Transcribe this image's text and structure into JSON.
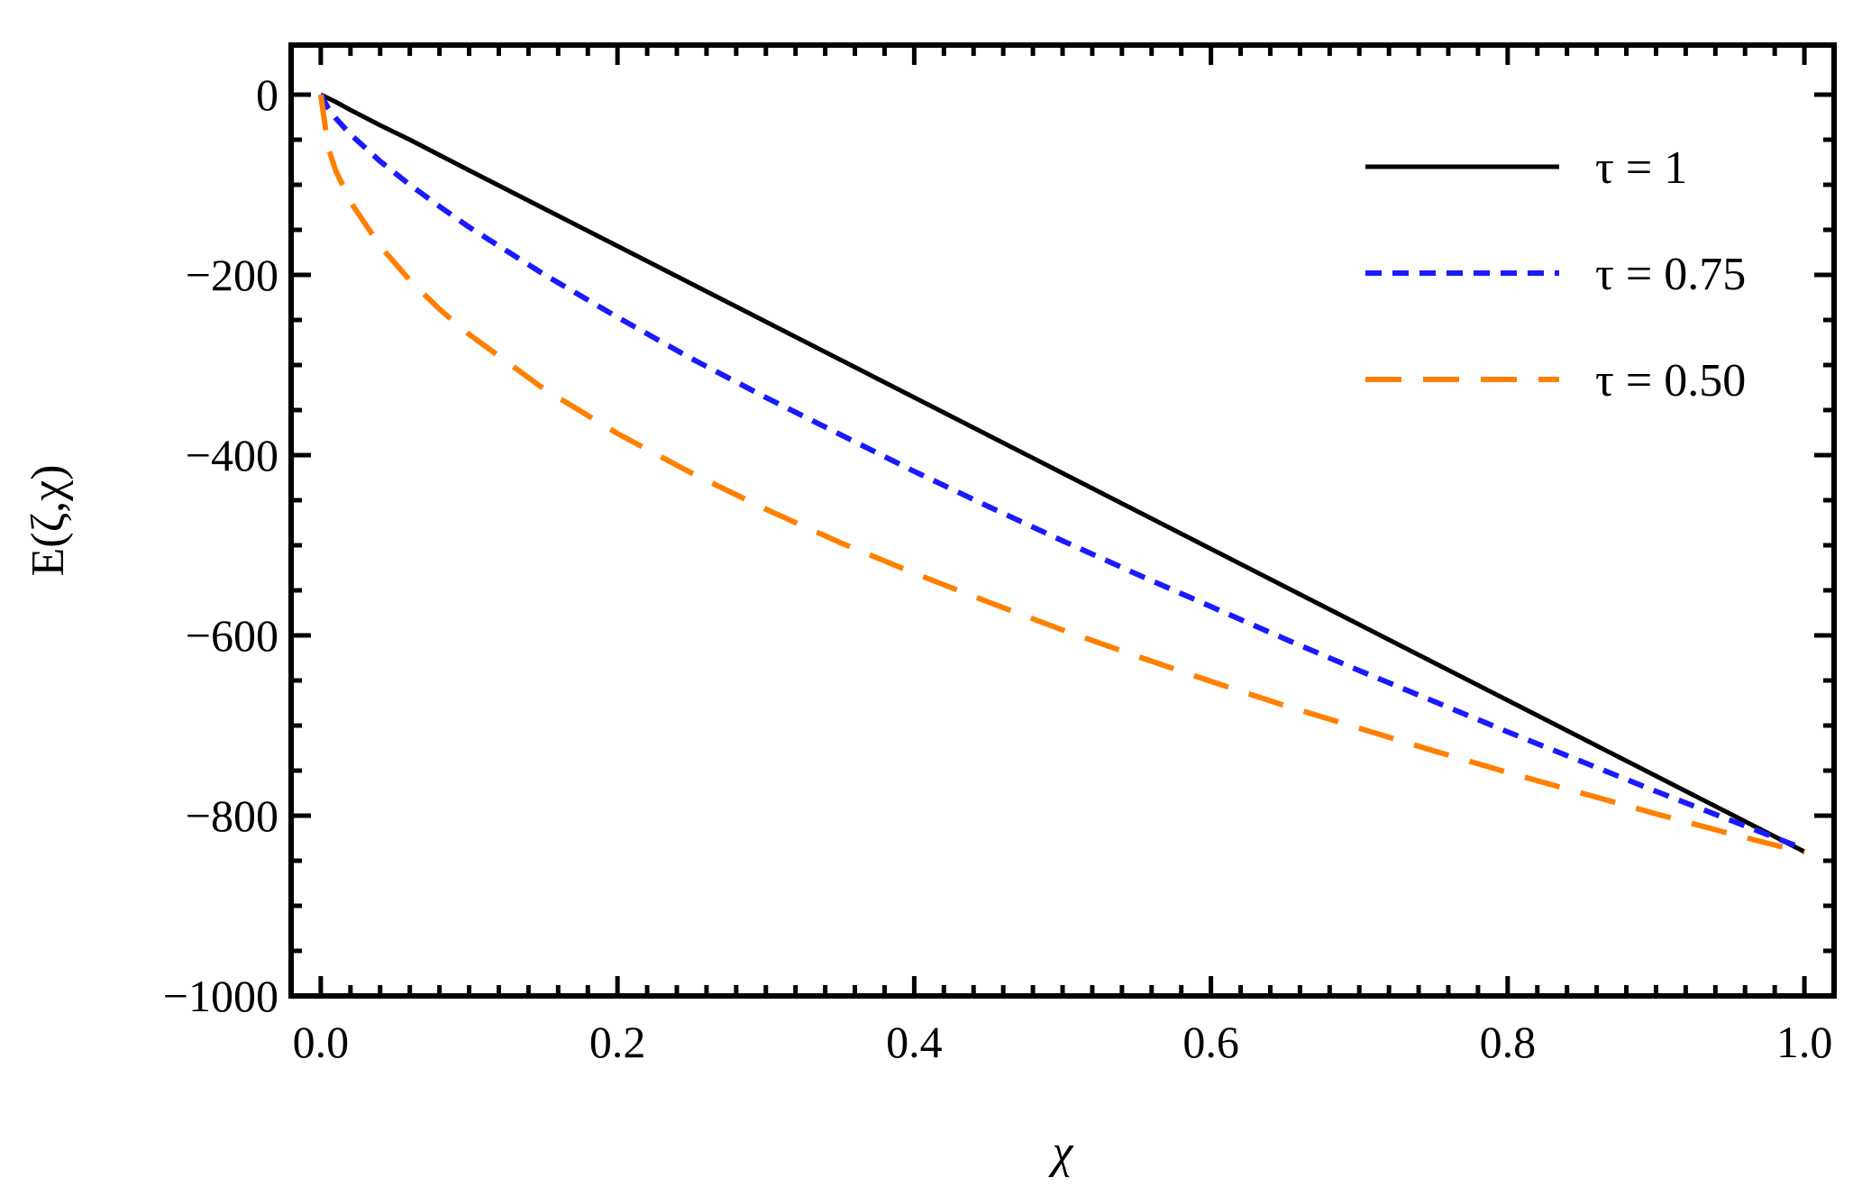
{
  "chart_data": {
    "type": "line",
    "title": "",
    "xlabel": "χ",
    "ylabel": "E(ζ,χ)",
    "xlim": [
      -0.02,
      1.02
    ],
    "ylim": [
      -1000,
      55
    ],
    "x_ticks": [
      0.0,
      0.2,
      0.4,
      0.6,
      0.8,
      1.0
    ],
    "x_tick_labels": [
      "0.0",
      "0.2",
      "0.4",
      "0.6",
      "0.8",
      "1.0"
    ],
    "y_ticks": [
      0,
      -200,
      -400,
      -600,
      -800,
      -1000
    ],
    "y_tick_labels": [
      "0",
      "−200",
      "−400",
      "−600",
      "−800",
      "−1000"
    ],
    "grid": false,
    "legend_position": "top-right",
    "x": [
      0.0,
      0.005,
      0.01,
      0.02,
      0.04,
      0.06,
      0.08,
      0.1,
      0.15,
      0.2,
      0.25,
      0.3,
      0.35,
      0.4,
      0.45,
      0.5,
      0.55,
      0.6,
      0.65,
      0.7,
      0.75,
      0.8,
      0.85,
      0.9,
      0.95,
      1.0
    ],
    "series": [
      {
        "name": "τ = 1",
        "color": "#000000",
        "style": "solid",
        "values": [
          0,
          -4,
          -8,
          -17,
          -34,
          -50,
          -67,
          -84,
          -126,
          -168,
          -210,
          -252,
          -294,
          -336,
          -378,
          -420,
          -462,
          -504,
          -546,
          -588,
          -630,
          -672,
          -714,
          -756,
          -798,
          -840
        ]
      },
      {
        "name": "τ = 0.75",
        "color": "#1a1aff",
        "style": "dotted",
        "values": [
          0,
          -15,
          -26,
          -44,
          -74,
          -100,
          -124,
          -147,
          -199,
          -247,
          -293,
          -336,
          -377,
          -418,
          -457,
          -495,
          -532,
          -568,
          -604,
          -639,
          -673,
          -707,
          -740,
          -773,
          -805,
          -837
        ]
      },
      {
        "name": "τ = 0.50",
        "color": "#ff8000",
        "style": "dashed",
        "values": [
          0,
          -59,
          -84,
          -119,
          -168,
          -206,
          -238,
          -266,
          -326,
          -376,
          -420,
          -460,
          -497,
          -531,
          -563,
          -594,
          -623,
          -651,
          -678,
          -703,
          -728,
          -752,
          -775,
          -798,
          -820,
          -841
        ]
      }
    ]
  }
}
